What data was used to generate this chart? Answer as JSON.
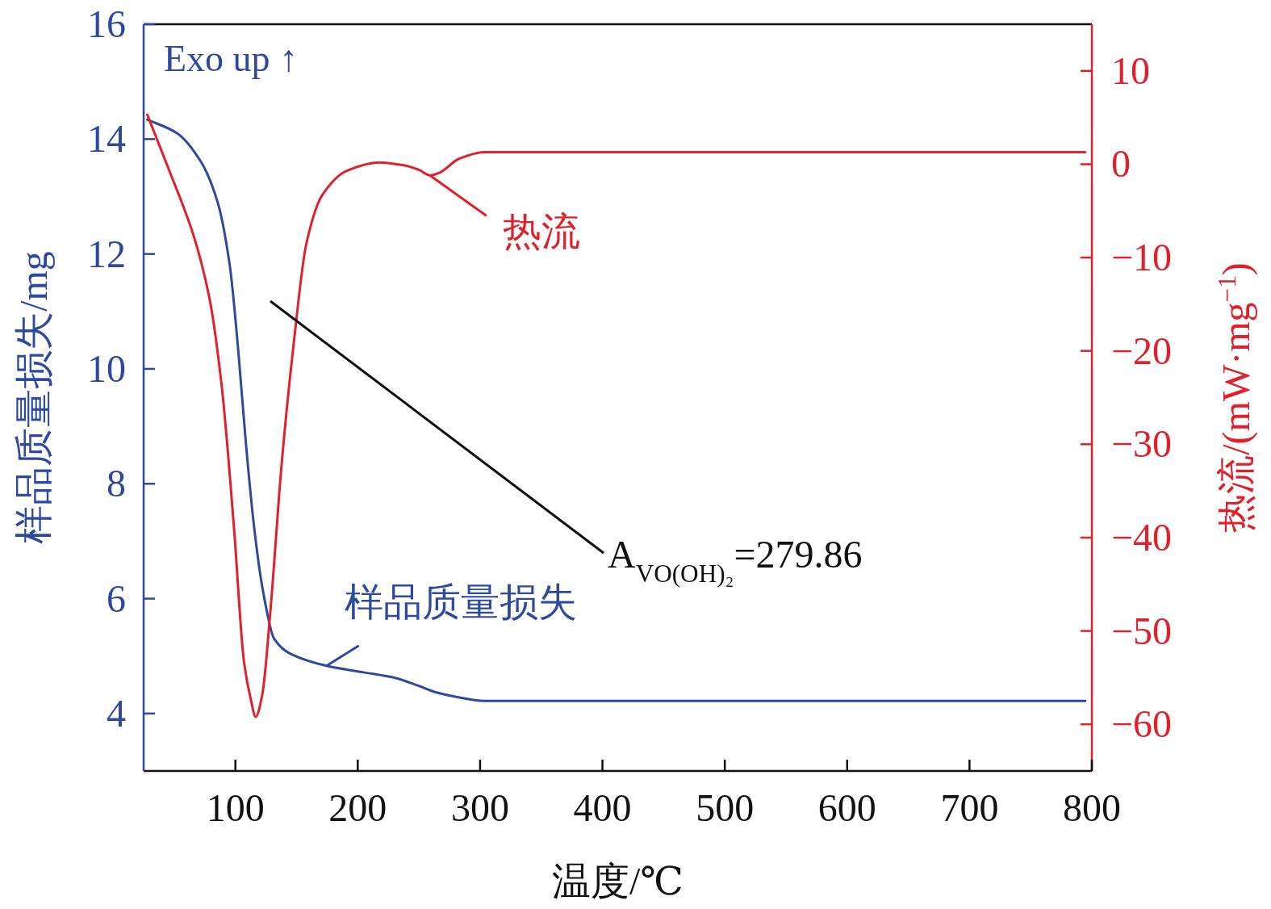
{
  "chart_data": {
    "type": "line",
    "xlabel": "温度/℃",
    "ylabel": "样品质量损失/mg",
    "y2label": "热流/(mW·mg$^{−1}$)",
    "xlim": [
      25,
      800
    ],
    "xticks": [
      100,
      200,
      300,
      400,
      500,
      600,
      700,
      800
    ],
    "ylim": [
      3,
      16
    ],
    "yticks": [
      4,
      6,
      8,
      10,
      12,
      14,
      16
    ],
    "y2lim": [
      -65,
      15
    ],
    "y2ticks": [
      {
        "value": -60,
        "label": "−60"
      },
      {
        "value": -50,
        "label": "−50"
      },
      {
        "value": -40,
        "label": "−40"
      },
      {
        "value": -30,
        "label": "−30"
      },
      {
        "value": -20,
        "label": "−20"
      },
      {
        "value": -10,
        "label": "−10"
      },
      0,
      10
    ],
    "series": [
      {
        "name": "样品质量损失",
        "color": "#2e4aa0",
        "x": [
          28,
          52.5,
          72,
          85.5,
          95.4,
          102,
          108.6,
          115,
          122,
          131.7,
          145,
          174.5,
          204,
          230.6,
          250,
          263.6,
          283,
          303,
          794.6
        ],
        "values": [
          14.34,
          14.1,
          13.6,
          12.9,
          11.8,
          10.4,
          8.7,
          7.3,
          6.2,
          5.3,
          5.04,
          4.83,
          4.72,
          4.62,
          4.48,
          4.37,
          4.28,
          4.22,
          4.22
        ]
      },
      {
        "name": "热流",
        "color": "#e0202a",
        "axis": "y2",
        "x": [
          28,
          46,
          65.7,
          79,
          89,
          98.7,
          107,
          113,
          116.5,
          122,
          128.4,
          138,
          148,
          158,
          171,
          191,
          217,
          237,
          250,
          259,
          267,
          283,
          303,
          794.6
        ],
        "values": [
          5.3,
          -0.7,
          -7.6,
          -14.5,
          -24,
          -38.7,
          -53.3,
          -57.6,
          -59.2,
          -56.8,
          -48.2,
          -31.8,
          -18.8,
          -8.5,
          -3.3,
          -0.7,
          0.2,
          -0.1,
          -0.6,
          -1.2,
          -0.9,
          0.6,
          1.3,
          1.3
        ]
      }
    ],
    "annotations": [
      "Exo up ↑",
      "A$_{VO(OH)₂}$=279.86"
    ]
  }
}
